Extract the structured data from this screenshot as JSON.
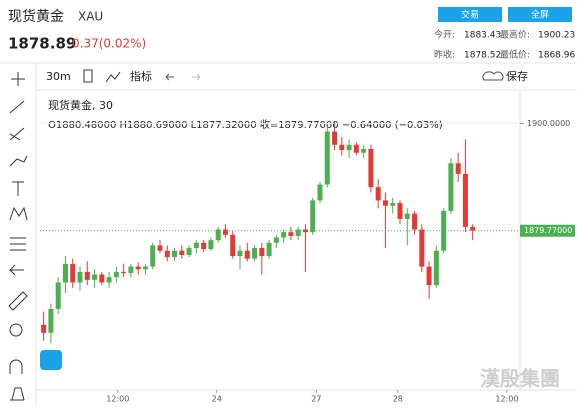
{
  "header": {
    "name": "现货黄金",
    "symbol": "XAU",
    "price": "1878.89",
    "change": "0.37(0.02%)",
    "buttons": [
      "交易",
      "全屏"
    ],
    "stats": [
      [
        "今开:",
        "1883.43"
      ],
      [
        "最高价:",
        "1900.23"
      ],
      [
        "昨收:",
        "1878.52"
      ],
      [
        "最低价:",
        "1868.96"
      ]
    ]
  },
  "toolbar": {
    "interval": "30m",
    "indicators": "指标",
    "save": "保存"
  },
  "watermark": "漢殷集團",
  "chart_data": {
    "type": "candlestick",
    "legend_text": "现货黄金, 30",
    "ohlc_text": "O1880.48000   H1880.69000   L1877.32000   收=1879.77000   −0.64000 (−0.03%)",
    "up_color": "#4caf50",
    "down_color": "#e53935",
    "open": [
      1862,
      1860.5,
      1865,
      1870,
      1873.5,
      1870,
      1872,
      1870.5,
      1871.5,
      1870,
      1871,
      1872,
      1871.8,
      1873,
      1872.5,
      1873,
      1877,
      1876,
      1874.8,
      1876,
      1875.2,
      1876.5,
      1877.5,
      1876.3,
      1878,
      1880,
      1879,
      1875,
      1876,
      1874.5,
      1876.5,
      1875,
      1877.5,
      1878.5,
      1879.5,
      1878.8,
      1880,
      1879.5,
      1885.5,
      1888.5,
      1898.5,
      1896,
      1895,
      1896,
      1894.5,
      1895.2,
      1888,
      1885.5,
      1884.5,
      1885,
      1882,
      1883,
      1880,
      1873,
      1869.5,
      1876,
      1883.5,
      1892.5,
      1890.5,
      1880.5
    ],
    "high": [
      1864.5,
      1866,
      1871,
      1875,
      1874.5,
      1873,
      1874,
      1872.5,
      1872,
      1872,
      1873,
      1873.5,
      1873.5,
      1873.8,
      1873.5,
      1877.5,
      1878,
      1877,
      1876.5,
      1877,
      1877,
      1878,
      1878,
      1878.5,
      1880.5,
      1881,
      1879.8,
      1877,
      1877.5,
      1877,
      1877.5,
      1878,
      1879,
      1880,
      1880.5,
      1880.5,
      1881,
      1886,
      1889,
      1899.5,
      1900.5,
      1897.5,
      1897,
      1896.5,
      1896,
      1896,
      1889.5,
      1887,
      1886,
      1885.5,
      1884,
      1883.5,
      1881,
      1874,
      1877,
      1884,
      1893.5,
      1894.5,
      1897,
      1881
    ],
    "low": [
      1859,
      1858.5,
      1864,
      1868,
      1869,
      1868.5,
      1869.5,
      1869,
      1869.5,
      1869,
      1870,
      1871,
      1871,
      1871.5,
      1871.5,
      1872.5,
      1875.5,
      1874,
      1874,
      1874.5,
      1874.8,
      1875.5,
      1875.8,
      1876,
      1877.5,
      1878.5,
      1874.5,
      1872.5,
      1874,
      1874,
      1871.5,
      1874.5,
      1876.5,
      1877.5,
      1878,
      1878,
      1872,
      1879,
      1885,
      1888,
      1895,
      1894,
      1893.5,
      1894,
      1893.5,
      1887,
      1884,
      1876.5,
      1883,
      1881,
      1877,
      1879,
      1872,
      1867,
      1869,
      1875.5,
      1883,
      1889,
      1879.5,
      1878
    ],
    "close": [
      1860.5,
      1865,
      1870,
      1873.5,
      1870,
      1872,
      1870.5,
      1871.5,
      1870,
      1871,
      1872,
      1871.8,
      1873,
      1872.5,
      1873,
      1877,
      1876,
      1874.8,
      1876,
      1875.2,
      1876.5,
      1877.5,
      1876.3,
      1878,
      1880,
      1879,
      1875,
      1876,
      1874.5,
      1876.5,
      1875,
      1877.5,
      1878.5,
      1879.5,
      1878.8,
      1880,
      1879.5,
      1885.5,
      1888.5,
      1898.5,
      1896,
      1895,
      1896,
      1894.5,
      1895.2,
      1888,
      1885.5,
      1884.5,
      1885,
      1882,
      1883,
      1880,
      1873,
      1869.5,
      1876,
      1883.5,
      1892.5,
      1890.5,
      1880.5,
      1879.77
    ],
    "xlim": [
      -0.5,
      65.5
    ],
    "xticks": [
      {
        "value": 10.2,
        "label": "12:00"
      },
      {
        "value": 23.8,
        "label": "24"
      },
      {
        "value": 37.5,
        "label": "27"
      },
      {
        "value": 48.7,
        "label": "28"
      },
      {
        "value": 63.7,
        "label": "12:00"
      }
    ],
    "ylim": [
      1849.7,
      1905.4
    ],
    "yticks": [
      {
        "value": 1900,
        "label": "1900.0000"
      }
    ],
    "last_price": {
      "value": 1879.77,
      "label": "1879.77000"
    }
  }
}
